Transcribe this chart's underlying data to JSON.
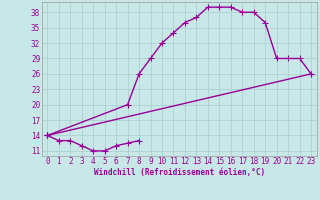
{
  "xlabel": "Windchill (Refroidissement éolien,°C)",
  "line_color": "#990099",
  "bg_color": "#c8e8e8",
  "grid_color": "#aacccc",
  "ylim": [
    10,
    40
  ],
  "xlim": [
    -0.5,
    23.5
  ],
  "yticks": [
    11,
    14,
    17,
    20,
    23,
    26,
    29,
    32,
    35,
    38
  ],
  "xticks": [
    0,
    1,
    2,
    3,
    4,
    5,
    6,
    7,
    8,
    9,
    10,
    11,
    12,
    13,
    14,
    15,
    16,
    17,
    18,
    19,
    20,
    21,
    22,
    23
  ],
  "curve1_x": [
    0,
    1,
    2,
    3,
    4,
    5,
    6,
    7,
    8
  ],
  "curve1_y": [
    14,
    13,
    13,
    12,
    11,
    11,
    12,
    12.5,
    13
  ],
  "curve2_x": [
    0,
    7,
    8,
    9,
    10,
    11,
    12,
    13,
    14,
    15,
    16,
    17,
    18,
    19,
    20,
    21,
    22,
    23
  ],
  "curve2_y": [
    14,
    20,
    26,
    29,
    32,
    34,
    36,
    37,
    39,
    39,
    39,
    38,
    38,
    36,
    29,
    29,
    29,
    26
  ],
  "curve3_x": [
    0,
    23
  ],
  "curve3_y": [
    14,
    26
  ],
  "tick_fontsize": 5.5,
  "xlabel_fontsize": 5.5,
  "linewidth": 1.0,
  "markersize": 4
}
